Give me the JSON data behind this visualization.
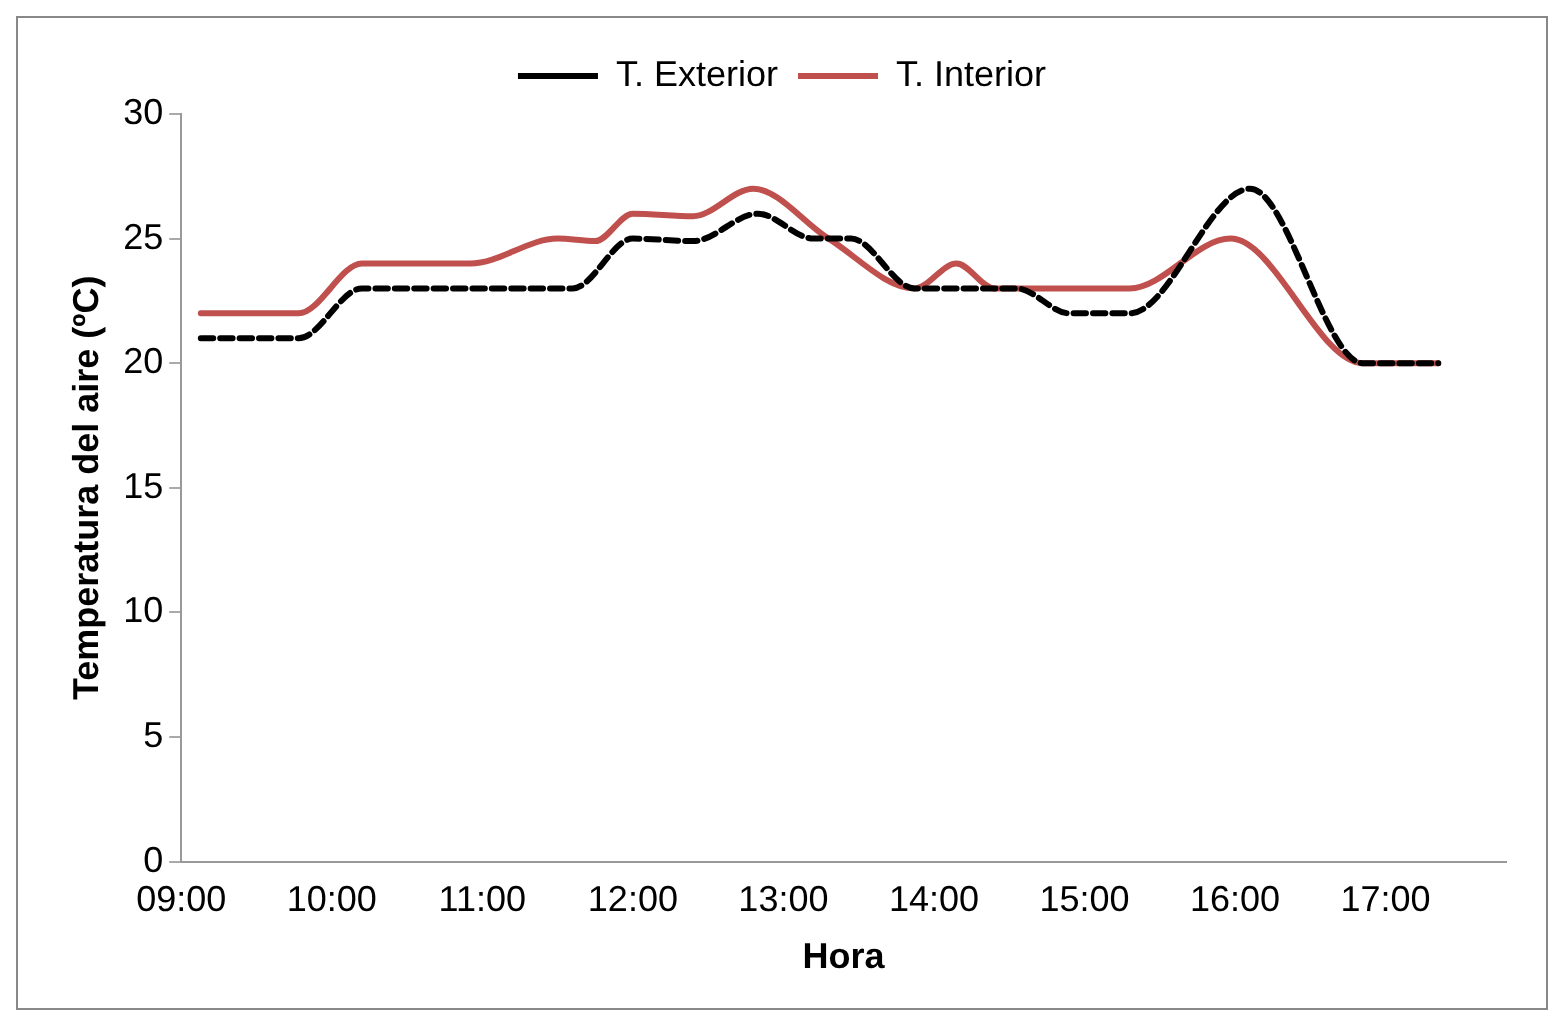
{
  "chart_data": {
    "type": "line",
    "xlabel": "Hora",
    "ylabel": "Temperatura del aire (ºC)",
    "xlim": [
      9,
      17.8
    ],
    "xticks": [
      {
        "value": 9,
        "label": "09:00"
      },
      {
        "value": 10,
        "label": "10:00"
      },
      {
        "value": 11,
        "label": "11:00"
      },
      {
        "value": 12,
        "label": "12:00"
      },
      {
        "value": 13,
        "label": "13:00"
      },
      {
        "value": 14,
        "label": "14:00"
      },
      {
        "value": 15,
        "label": "15:00"
      },
      {
        "value": 16,
        "label": "16:00"
      },
      {
        "value": 17,
        "label": "17:00"
      }
    ],
    "ylim": [
      0,
      30
    ],
    "yticks": [
      0,
      5,
      10,
      15,
      20,
      25,
      30
    ],
    "grid": false,
    "legend": "top",
    "marker": "none",
    "series": [
      {
        "name": "T. Exterior",
        "color": "#000000",
        "line_style": "dashed",
        "x": [
          9.13,
          9.78,
          10.2,
          11.6,
          12.0,
          12.4,
          12.83,
          13.2,
          13.45,
          13.87,
          14.3,
          14.55,
          14.9,
          15.3,
          16.1,
          16.85,
          17.35
        ],
        "values": [
          21,
          21,
          23,
          23,
          25,
          24.9,
          26,
          25,
          25,
          23,
          23,
          23,
          22,
          22,
          27,
          20,
          20
        ]
      },
      {
        "name": "T. Interior",
        "color": "#c0504d",
        "line_style": "solid",
        "x": [
          9.13,
          9.78,
          10.2,
          10.92,
          11.5,
          11.75,
          12.0,
          12.4,
          12.8,
          13.3,
          13.87,
          14.15,
          14.4,
          15.3,
          15.97,
          16.85,
          17.35
        ],
        "values": [
          22,
          22,
          24,
          24,
          25,
          24.9,
          26,
          25.9,
          27,
          25,
          23,
          24,
          23,
          23,
          25,
          20,
          20
        ]
      }
    ]
  }
}
